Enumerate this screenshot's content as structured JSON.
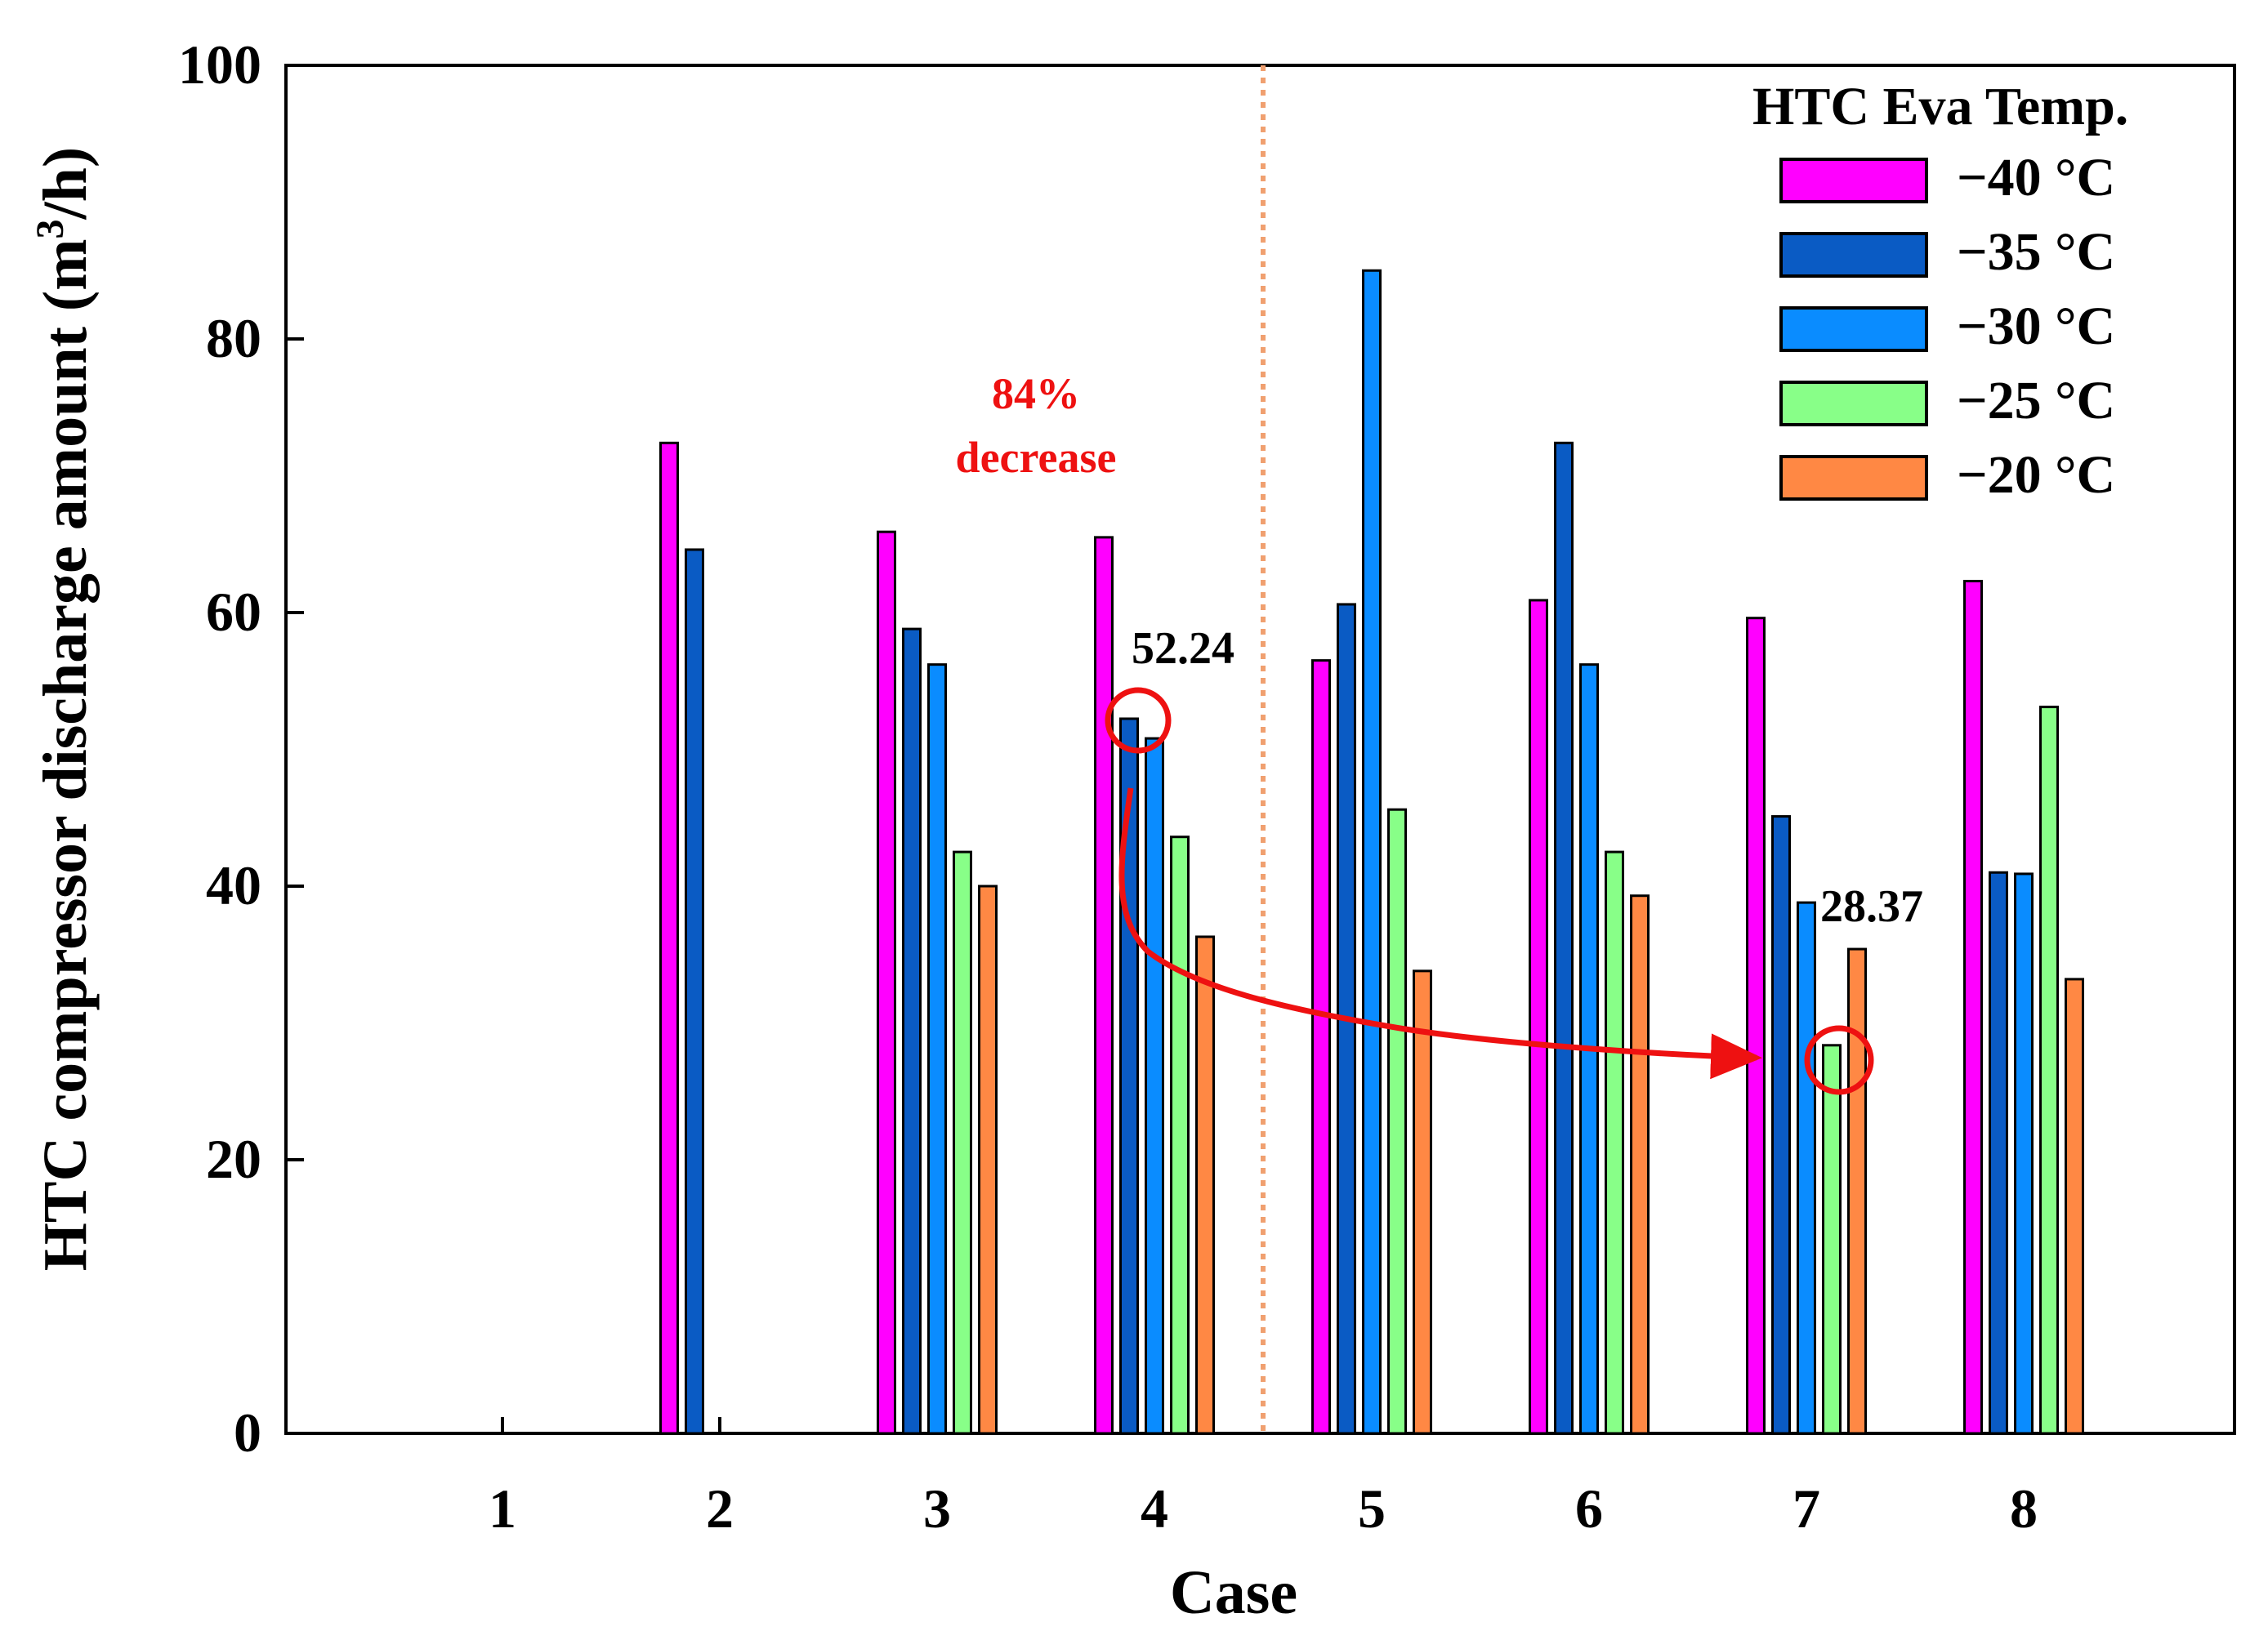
{
  "chart_data": {
    "type": "bar",
    "title": "",
    "xlabel": "Case",
    "ylabel": "HTC compressor discharge amount (m",
    "ylabel_sup": "3",
    "ylabel_end": "/h)",
    "ylim": [
      0,
      100
    ],
    "yticks": [
      0,
      20,
      40,
      60,
      80,
      100
    ],
    "categories": [
      "1",
      "2",
      "3",
      "4",
      "5",
      "6",
      "7",
      "8"
    ],
    "legend": {
      "title": "HTC Eva Temp.",
      "position": "top-right"
    },
    "series": [
      {
        "name": "−40 °C",
        "color": "#ff00ff",
        "values": [
          null,
          72.4,
          65.9,
          65.5,
          56.5,
          60.9,
          59.6,
          62.3
        ]
      },
      {
        "name": "−35 °C",
        "color": "#0a5bc4",
        "values": [
          null,
          64.6,
          58.8,
          52.24,
          60.6,
          72.4,
          45.1,
          41.0
        ]
      },
      {
        "name": "−30 °C",
        "color": "#0a8cff",
        "values": [
          null,
          null,
          56.2,
          50.8,
          85.0,
          56.2,
          38.8,
          40.9
        ]
      },
      {
        "name": "−25 °C",
        "color": "#88ff88",
        "values": [
          null,
          null,
          42.5,
          43.6,
          45.6,
          42.5,
          28.37,
          53.1
        ]
      },
      {
        "name": "−20 °C",
        "color": "#ff8844",
        "values": [
          null,
          null,
          40.0,
          36.3,
          33.8,
          39.3,
          35.4,
          33.2
        ]
      }
    ],
    "annotations": {
      "value_a": "52.24",
      "value_b": "28.37",
      "decrease_pct": "84%",
      "decrease_word": "decrease",
      "divider_between_cases": [
        4,
        5
      ]
    }
  }
}
